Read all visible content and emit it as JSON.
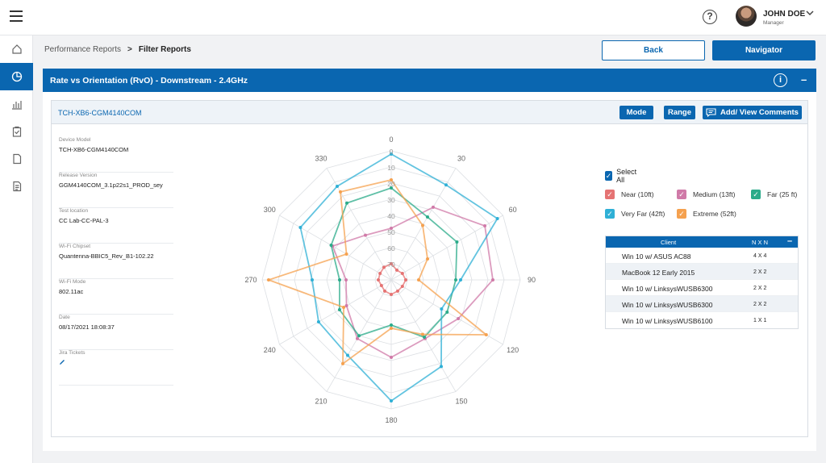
{
  "topbar": {
    "user_name": "JOHN DOE",
    "user_role": "Manager",
    "help_glyph": "?",
    "icons": [
      "hamburger-icon",
      "help-icon",
      "chevron-down-icon"
    ]
  },
  "sidebar": {
    "items": [
      {
        "name": "home",
        "icon": "home-icon",
        "active": false
      },
      {
        "name": "performance-reports",
        "icon": "pie-chart-icon",
        "active": true
      },
      {
        "name": "charts",
        "icon": "bar-chart-icon",
        "active": false
      },
      {
        "name": "tasks",
        "icon": "clipboard-icon",
        "active": false
      },
      {
        "name": "documents",
        "icon": "document-icon",
        "active": false
      },
      {
        "name": "notes",
        "icon": "notes-icon",
        "active": false
      }
    ]
  },
  "breadcrumb": {
    "parent": "Performance Reports",
    "separator": ">",
    "current": "Filter Reports"
  },
  "actions": {
    "back_label": "Back",
    "navigator_label": "Navigator"
  },
  "panel": {
    "title": "Rate vs Orientation (RvO) - Downstream - 2.4GHz",
    "info_glyph": "i",
    "collapse_glyph": "–"
  },
  "card": {
    "title": "TCH-XB6-CGM4140COM",
    "mode_label": "Mode",
    "range_label": "Range",
    "comments_label": "Add/ View Comments"
  },
  "device_info": [
    {
      "label": "Device Model",
      "value": "TCH-XB6-CGM4140COM"
    },
    {
      "label": "Release Version",
      "value": "GGM4140COM_3.1p22s1_PROD_sey"
    },
    {
      "label": "Test location",
      "value": "CC Lab-CC-PAL-3"
    },
    {
      "label": "Wi-Fi Chipset",
      "value": "Quantenna-BBIC5_Rev_B1-102.22"
    },
    {
      "label": "Wi-Fi Mode",
      "value": "802.11ac"
    },
    {
      "label": "Date",
      "value": "08/17/2021  18:08:37"
    },
    {
      "label": "Jira Tickets",
      "value": ""
    }
  ],
  "legend": {
    "select_all": "Select All",
    "check_glyph": "✓",
    "items": [
      {
        "label": "Near (10ft)",
        "color": "#e57373"
      },
      {
        "label": "Medium (13ft)",
        "color": "#d07aa8"
      },
      {
        "label": "Far (25 ft)",
        "color": "#2bab8a"
      },
      {
        "label": "Very Far (42ft)",
        "color": "#2fb0d6"
      },
      {
        "label": "Extreme (52ft)",
        "color": "#f5a14f"
      }
    ]
  },
  "client_table": {
    "headers": [
      "Client",
      "N X N"
    ],
    "collapse_glyph": "–",
    "rows": [
      {
        "client": "Win 10 w/ ASUS AC88",
        "nxn": "4 X 4"
      },
      {
        "client": "MacBook 12 Early 2015",
        "nxn": "2 X 2"
      },
      {
        "client": "Win 10 w/ LinksysWUSB6300",
        "nxn": "2 X 2"
      },
      {
        "client": "Win 10 w/ LinksysWUSB6300",
        "nxn": "2 X 2"
      },
      {
        "client": "Win 10 w/ LinksysWUSB6100",
        "nxn": "1 X 1"
      }
    ]
  },
  "chart_data": {
    "type": "radar",
    "angles": [
      0,
      30,
      60,
      90,
      120,
      150,
      180,
      210,
      240,
      270,
      300,
      330
    ],
    "radial_ticks": [
      "0",
      "10",
      "20",
      "30",
      "40",
      "50",
      "60",
      "70"
    ],
    "radial_range": [
      0,
      80
    ],
    "radial_reversed": true,
    "grid": true,
    "series": [
      {
        "name": "Near (10ft)",
        "color": "#e57373",
        "values": [
          70,
          73,
          72,
          71,
          72,
          72,
          71,
          72,
          73,
          72,
          72,
          71
        ]
      },
      {
        "name": "Medium (13ft)",
        "color": "#d07aa8",
        "values": [
          48,
          28,
          13,
          17,
          32,
          38,
          32,
          38,
          48,
          52,
          38,
          48
        ]
      },
      {
        "name": "Far (25 ft)",
        "color": "#2bab8a",
        "values": [
          23,
          35,
          33,
          40,
          40,
          39,
          52,
          40,
          43,
          48,
          37,
          25
        ]
      },
      {
        "name": "Very Far (42ft)",
        "color": "#2fb0d6",
        "values": [
          2,
          12,
          4,
          37,
          44,
          18,
          5,
          26,
          28,
          31,
          15,
          13
        ]
      },
      {
        "name": "Extreme (52ft)",
        "color": "#f5a14f",
        "values": [
          18,
          41,
          54,
          63,
          12,
          41,
          50,
          20,
          46,
          4,
          48,
          17
        ]
      }
    ]
  }
}
